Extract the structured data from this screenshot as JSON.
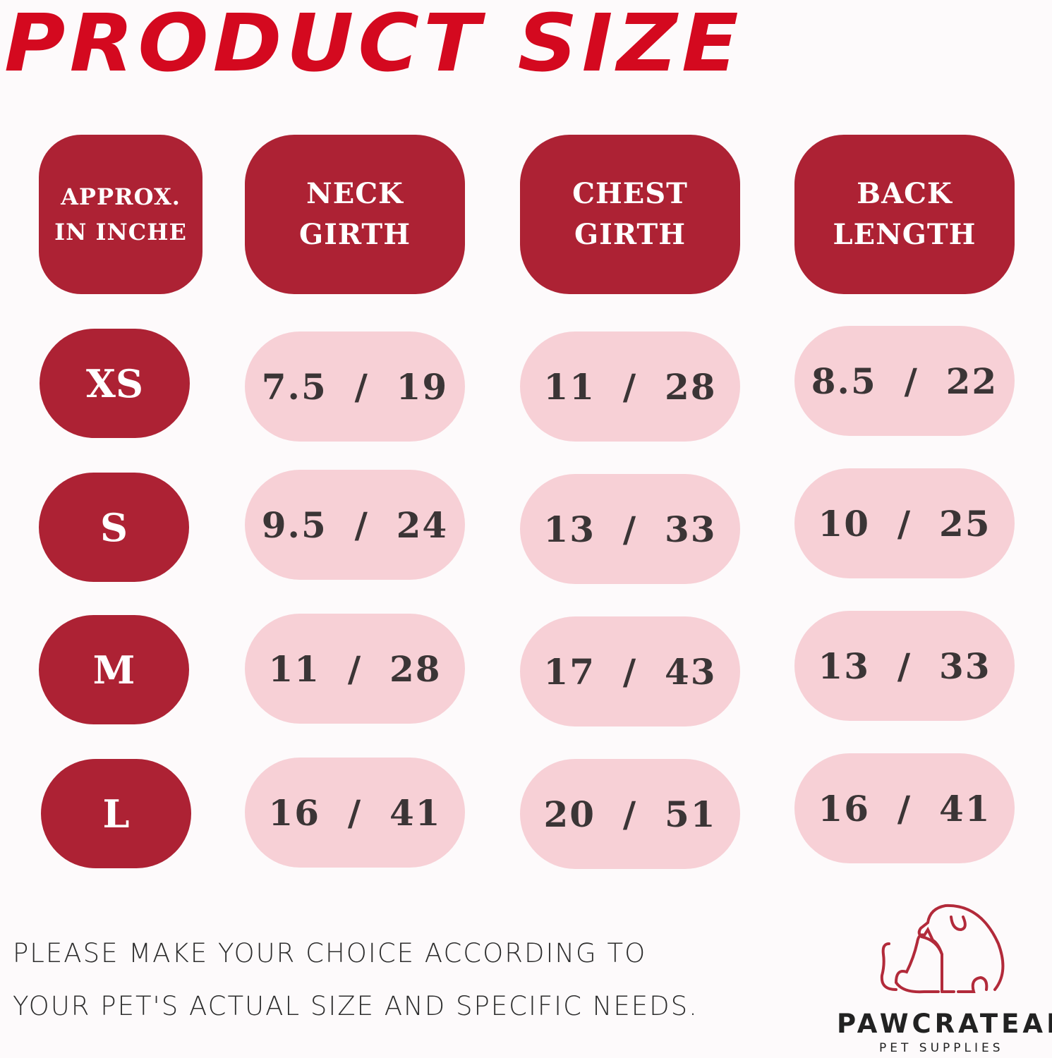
{
  "title": "PRODUCT SIZE",
  "headers": [
    "APPROX.\nIN INCHE",
    "NECK\nGIRTH",
    "CHEST\nGIRTH",
    "BACK\nLENGTH"
  ],
  "rows": [
    {
      "size": "XS",
      "values": [
        "7.5  /  19",
        "11  /  28",
        "8.5  /  22"
      ]
    },
    {
      "size": "S",
      "values": [
        "9.5  /  24",
        "13  /  33",
        "10  /  25"
      ]
    },
    {
      "size": "M",
      "values": [
        "11  /  28",
        "17  /  43",
        "13  /  33"
      ]
    },
    {
      "size": "L",
      "values": [
        "16  /  41",
        "20  /  51",
        "16  /  41"
      ]
    }
  ],
  "note_lines": [
    "PLEASE MAKE YOUR CHOICE ACCORDING TO",
    "YOUR PET'S ACTUAL SIZE AND SPECIFIC NEEDS."
  ],
  "brand": {
    "name": "PAWCRATEAN",
    "tagline": "PET SUPPLIES",
    "logo_icon": "dog-and-cat-outline-icon"
  },
  "colors": {
    "title": "#d4091f",
    "header_bg": "#ad2234",
    "value_bg": "#f7d0d6",
    "value_text": "#3b3536"
  }
}
